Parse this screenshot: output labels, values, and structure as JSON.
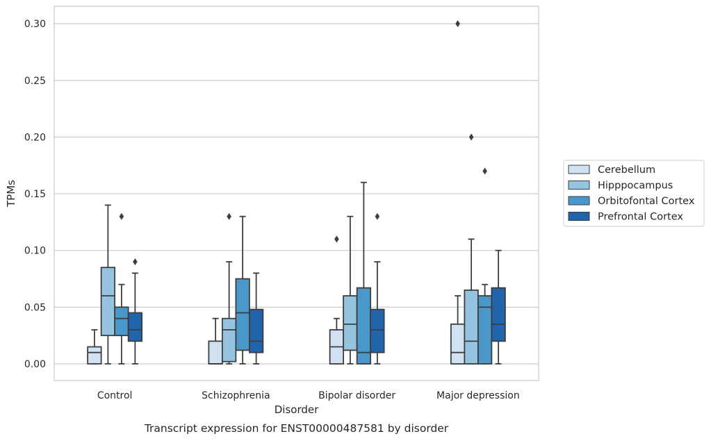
{
  "chart_data": {
    "type": "box",
    "title": "",
    "caption": "Transcript expression for ENST00000487581 by disorder",
    "xlabel": "Disorder",
    "ylabel": "TPMs",
    "ylim": [
      -0.015,
      0.315
    ],
    "yticks": [
      0.0,
      0.05,
      0.1,
      0.15,
      0.2,
      0.25,
      0.3
    ],
    "ytick_labels": [
      "0.00",
      "0.05",
      "0.10",
      "0.15",
      "0.20",
      "0.25",
      "0.30"
    ],
    "grid": "horizontal",
    "legend_position": "right",
    "categories": [
      "Control",
      "Schizophrenia",
      "Bipolar disorder",
      "Major depression"
    ],
    "series": [
      {
        "name": "Cerebellum",
        "color": "#d0e1f2",
        "boxes": [
          {
            "whisker_low": 0.0,
            "q1": 0.0,
            "median": 0.01,
            "q3": 0.015,
            "whisker_high": 0.03,
            "outliers": []
          },
          {
            "whisker_low": 0.0,
            "q1": 0.0,
            "median": 0.0,
            "q3": 0.02,
            "whisker_high": 0.04,
            "outliers": []
          },
          {
            "whisker_low": 0.0,
            "q1": 0.0,
            "median": 0.015,
            "q3": 0.03,
            "whisker_high": 0.04,
            "outliers": [
              0.11
            ]
          },
          {
            "whisker_low": 0.0,
            "q1": 0.0,
            "median": 0.01,
            "q3": 0.035,
            "whisker_high": 0.06,
            "outliers": [
              0.3
            ]
          }
        ]
      },
      {
        "name": "Hipppocampus",
        "color": "#94c4df",
        "boxes": [
          {
            "whisker_low": 0.0,
            "q1": 0.025,
            "median": 0.06,
            "q3": 0.085,
            "whisker_high": 0.14,
            "outliers": []
          },
          {
            "whisker_low": 0.0,
            "q1": 0.002,
            "median": 0.03,
            "q3": 0.04,
            "whisker_high": 0.09,
            "outliers": [
              0.13
            ]
          },
          {
            "whisker_low": 0.0,
            "q1": 0.012,
            "median": 0.035,
            "q3": 0.06,
            "whisker_high": 0.13,
            "outliers": []
          },
          {
            "whisker_low": 0.0,
            "q1": 0.0,
            "median": 0.02,
            "q3": 0.065,
            "whisker_high": 0.11,
            "outliers": [
              0.2
            ]
          }
        ]
      },
      {
        "name": "Orbitofontal Cortex",
        "color": "#4a98c9",
        "boxes": [
          {
            "whisker_low": 0.0,
            "q1": 0.025,
            "median": 0.04,
            "q3": 0.05,
            "whisker_high": 0.07,
            "outliers": [
              0.13
            ]
          },
          {
            "whisker_low": 0.0,
            "q1": 0.012,
            "median": 0.045,
            "q3": 0.075,
            "whisker_high": 0.13,
            "outliers": []
          },
          {
            "whisker_low": 0.0,
            "q1": 0.0,
            "median": 0.01,
            "q3": 0.067,
            "whisker_high": 0.16,
            "outliers": []
          },
          {
            "whisker_low": 0.0,
            "q1": 0.0,
            "median": 0.05,
            "q3": 0.06,
            "whisker_high": 0.07,
            "outliers": [
              0.17
            ]
          }
        ]
      },
      {
        "name": "Prefrontal Cortex",
        "color": "#2164ab",
        "boxes": [
          {
            "whisker_low": 0.0,
            "q1": 0.02,
            "median": 0.03,
            "q3": 0.045,
            "whisker_high": 0.08,
            "outliers": [
              0.09
            ]
          },
          {
            "whisker_low": 0.0,
            "q1": 0.01,
            "median": 0.02,
            "q3": 0.048,
            "whisker_high": 0.08,
            "outliers": []
          },
          {
            "whisker_low": 0.0,
            "q1": 0.01,
            "median": 0.03,
            "q3": 0.048,
            "whisker_high": 0.09,
            "outliers": [
              0.13
            ]
          },
          {
            "whisker_low": 0.0,
            "q1": 0.02,
            "median": 0.035,
            "q3": 0.067,
            "whisker_high": 0.1,
            "outliers": []
          }
        ]
      }
    ]
  }
}
